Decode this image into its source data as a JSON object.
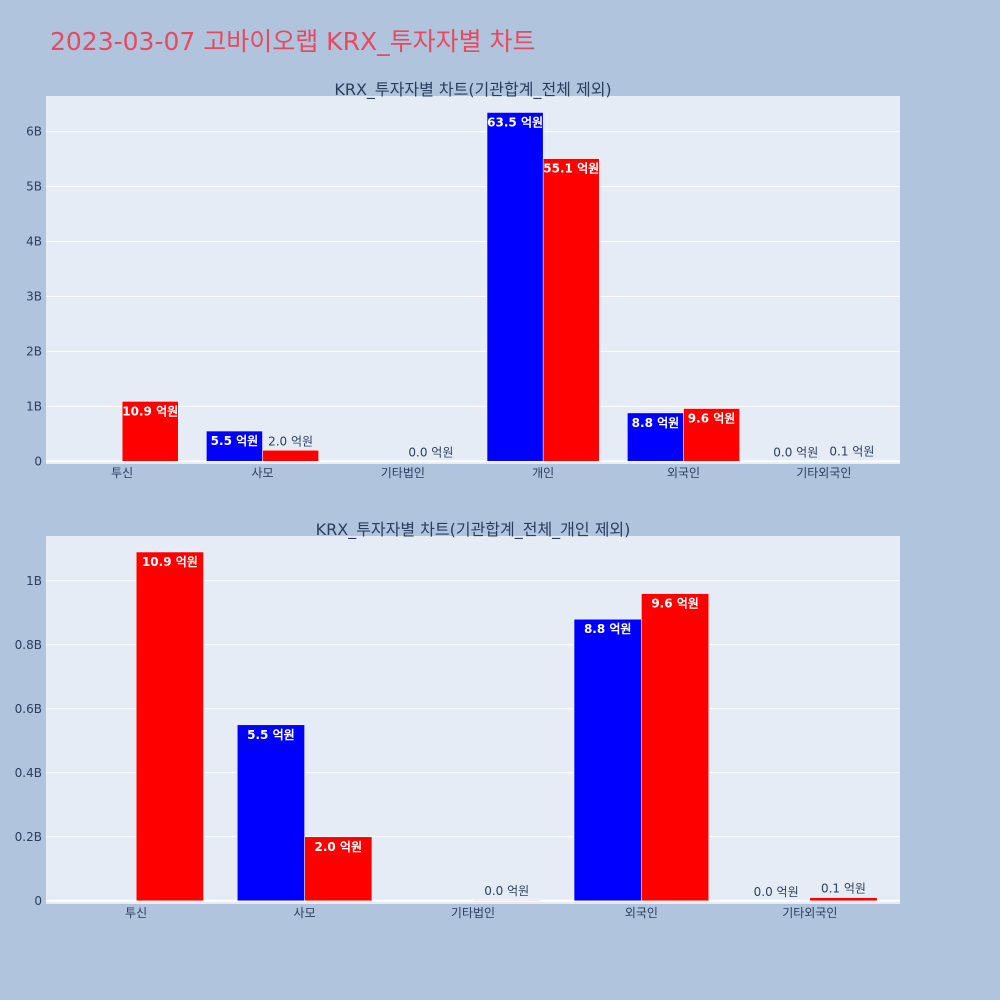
{
  "page": {
    "title": "2023-03-07 고바이오랩 KRX_투자자별 차트"
  },
  "colors": {
    "background": "#b0c4de",
    "plot_bg": "#e5ecf6",
    "buy": "#0000ff",
    "sell": "#ff0000",
    "title": "#e8495f"
  },
  "chart_data": [
    {
      "type": "bar",
      "title": "KRX_투자자별 차트(기관합계_전체 제외)",
      "categories": [
        "투신",
        "사모",
        "기타법인",
        "개인",
        "외국인",
        "기타외국인"
      ],
      "ylim": [
        -0.05,
        6.65
      ],
      "yticks": [
        0,
        1,
        2,
        3,
        4,
        5,
        6
      ],
      "ytick_labels": [
        "0",
        "1B",
        "2B",
        "3B",
        "4B",
        "5B",
        "6B"
      ],
      "unit_note": "values in billions",
      "grid": true,
      "legend": "none",
      "series": [
        {
          "color": "#0000ff",
          "values": [
            0,
            0.55,
            0,
            6.35,
            0.88,
            0
          ],
          "labels": [
            "",
            "5.5 억원",
            "",
            "63.5 억원",
            "8.8 억원",
            "0.0 억원"
          ]
        },
        {
          "color": "#ff0000",
          "values": [
            1.09,
            0.2,
            0.0,
            5.51,
            0.96,
            0.01
          ],
          "labels": [
            "10.9 억원",
            "2.0 억원",
            "0.0 억원",
            "55.1 억원",
            "9.6 억원",
            "0.1 억원"
          ]
        }
      ]
    },
    {
      "type": "bar",
      "title": "KRX_투자자별 차트(기관합계_전체_개인 제외)",
      "categories": [
        "투신",
        "사모",
        "기타법인",
        "외국인",
        "기타외국인"
      ],
      "ylim": [
        -0.01,
        1.14
      ],
      "yticks": [
        0,
        0.2,
        0.4,
        0.6,
        0.8,
        1.0
      ],
      "ytick_labels": [
        "0",
        "0.2B",
        "0.4B",
        "0.6B",
        "0.8B",
        "1B"
      ],
      "unit_note": "values in billions",
      "grid": true,
      "legend": "none",
      "series": [
        {
          "color": "#0000ff",
          "values": [
            0,
            0.55,
            0,
            0.88,
            0
          ],
          "labels": [
            "",
            "5.5 억원",
            "",
            "8.8 억원",
            "0.0 억원"
          ]
        },
        {
          "color": "#ff0000",
          "values": [
            1.09,
            0.2,
            0.002,
            0.96,
            0.01
          ],
          "labels": [
            "10.9 억원",
            "2.0 억원",
            "0.0 억원",
            "9.6 억원",
            "0.1 억원"
          ]
        }
      ]
    }
  ]
}
